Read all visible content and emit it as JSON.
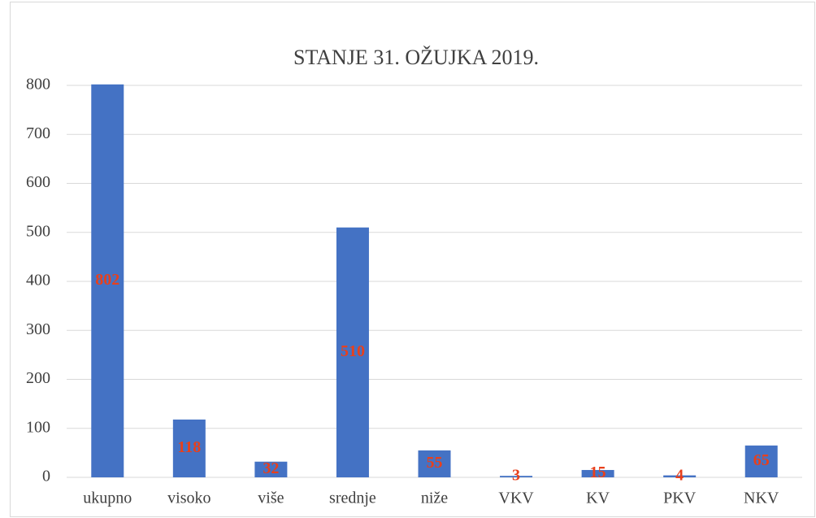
{
  "chart_data": {
    "type": "bar",
    "title": "STANJE 31. OŽUJKA 2019.",
    "categories": [
      "ukupno",
      "visoko",
      "više",
      "srednje",
      "niže",
      "VKV",
      "KV",
      "PKV",
      "NKV"
    ],
    "values": [
      802,
      118,
      32,
      510,
      55,
      3,
      15,
      4,
      65
    ],
    "color": "#4472c4",
    "label_color": "#e8401c",
    "ylim": [
      0,
      800
    ],
    "yticks": [
      0,
      100,
      200,
      300,
      400,
      500,
      600,
      700,
      800
    ],
    "grid": true
  }
}
